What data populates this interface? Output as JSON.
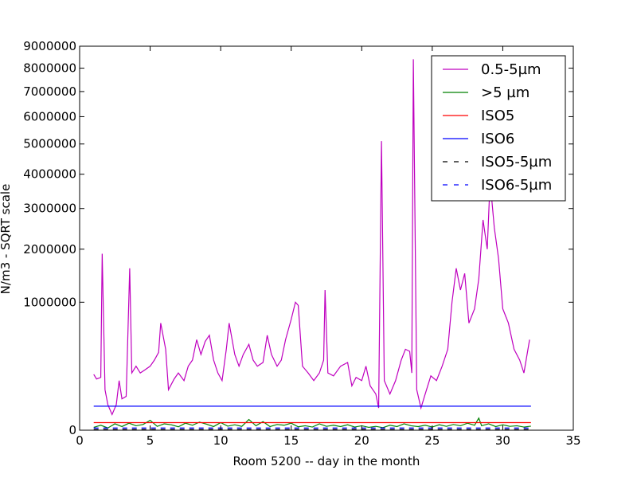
{
  "chart_data": {
    "type": "line",
    "xlabel": "Room 5200 -- day in the month",
    "ylabel": "N/m3 - SQRT scale",
    "xlim": [
      0,
      35
    ],
    "ylim": [
      0,
      9000000
    ],
    "yscale": "sqrt",
    "xticks": [
      0,
      5,
      10,
      15,
      20,
      25,
      30,
      35
    ],
    "yticks": [
      0,
      1000000,
      2000000,
      3000000,
      4000000,
      5000000,
      6000000,
      7000000,
      8000000,
      9000000
    ],
    "legend": "upper right",
    "series": [
      {
        "name": "0.5-5µm",
        "color": "#bf00bf",
        "dash": false,
        "x": [
          1.0,
          1.2,
          1.5,
          1.6,
          1.8,
          2.0,
          2.3,
          2.6,
          2.8,
          3.0,
          3.3,
          3.55,
          3.7,
          4.0,
          4.3,
          4.6,
          5.0,
          5.3,
          5.6,
          5.75,
          6.1,
          6.3,
          6.7,
          7.0,
          7.4,
          7.7,
          8.0,
          8.3,
          8.6,
          8.9,
          9.2,
          9.5,
          9.8,
          10.1,
          10.4,
          10.6,
          11.0,
          11.3,
          11.6,
          12.0,
          12.3,
          12.6,
          13.0,
          13.3,
          13.6,
          14.0,
          14.3,
          14.6,
          15.0,
          15.3,
          15.5,
          15.8,
          16.2,
          16.6,
          17.0,
          17.3,
          17.4,
          17.6,
          18.0,
          18.5,
          19.0,
          19.3,
          19.6,
          20.0,
          20.3,
          20.6,
          21.0,
          21.2,
          21.4,
          21.6,
          22.0,
          22.4,
          22.8,
          23.1,
          23.4,
          23.55,
          23.66,
          23.9,
          24.2,
          24.5,
          24.9,
          25.3,
          25.7,
          26.1,
          26.4,
          26.7,
          27.0,
          27.3,
          27.6,
          28.0,
          28.3,
          28.6,
          28.9,
          29.1,
          29.4,
          29.7,
          30.0,
          30.4,
          30.8,
          31.2,
          31.5,
          31.9
        ],
        "values": [
          190000,
          160000,
          170000,
          1900000,
          100000,
          40000,
          15000,
          40000,
          150000,
          60000,
          70000,
          1600000,
          200000,
          250000,
          200000,
          220000,
          250000,
          300000,
          370000,
          700000,
          400000,
          100000,
          160000,
          200000,
          150000,
          250000,
          300000,
          500000,
          350000,
          480000,
          550000,
          300000,
          200000,
          150000,
          400000,
          700000,
          350000,
          250000,
          350000,
          450000,
          300000,
          250000,
          280000,
          550000,
          350000,
          250000,
          300000,
          500000,
          750000,
          1000000,
          950000,
          250000,
          200000,
          150000,
          200000,
          300000,
          1200000,
          200000,
          180000,
          250000,
          280000,
          120000,
          170000,
          150000,
          250000,
          120000,
          80000,
          30000,
          5100000,
          150000,
          80000,
          150000,
          300000,
          400000,
          380000,
          200000,
          8400000,
          100000,
          30000,
          80000,
          180000,
          150000,
          250000,
          400000,
          1000000,
          1600000,
          1200000,
          1500000,
          700000,
          900000,
          1400000,
          2700000,
          2000000,
          3800000,
          2500000,
          1800000,
          900000,
          700000,
          400000,
          300000,
          200000,
          500000
        ]
      },
      {
        "name": ">5 µm",
        "color": "#008000",
        "dash": false,
        "x": [
          1.0,
          1.5,
          2.0,
          2.5,
          3.0,
          3.5,
          4.0,
          4.5,
          5.0,
          5.5,
          6.0,
          6.5,
          7.0,
          7.5,
          8.0,
          8.5,
          9.0,
          9.5,
          10.0,
          10.5,
          11.0,
          11.5,
          12.0,
          12.5,
          13.0,
          13.5,
          14.0,
          14.5,
          15.0,
          15.5,
          16.0,
          16.5,
          17.0,
          17.5,
          18.0,
          18.5,
          19.0,
          19.5,
          20.0,
          20.5,
          21.0,
          21.5,
          22.0,
          22.5,
          23.0,
          23.5,
          24.0,
          24.5,
          25.0,
          25.5,
          26.0,
          26.5,
          27.0,
          27.5,
          28.0,
          28.3,
          28.5,
          29.0,
          29.5,
          30.0,
          30.5,
          31.0,
          31.5,
          32.0
        ],
        "values": [
          500,
          1500,
          300,
          2500,
          800,
          3000,
          1200,
          2000,
          6000,
          900,
          2500,
          1800,
          700,
          3000,
          1500,
          4000,
          2200,
          800,
          3500,
          1000,
          1800,
          900,
          7000,
          1200,
          4500,
          800,
          2000,
          1500,
          3000,
          700,
          1200,
          600,
          2500,
          900,
          1500,
          800,
          1800,
          600,
          1200,
          500,
          900,
          400,
          1500,
          800,
          2500,
          1200,
          800,
          1500,
          600,
          1800,
          900,
          2000,
          1200,
          3000,
          1500,
          9000,
          1200,
          2500,
          800,
          1800,
          900,
          1200,
          600,
          1000
        ]
      },
      {
        "name": "ISO5",
        "color": "#ff0000",
        "dash": false,
        "x": [
          1,
          32
        ],
        "values": [
          3520,
          3520
        ]
      },
      {
        "name": "ISO6",
        "color": "#0000ff",
        "dash": false,
        "x": [
          1,
          32
        ],
        "values": [
          35200,
          35200
        ]
      },
      {
        "name": "ISO5-5µm",
        "color": "#000000",
        "dash": true,
        "x": [
          1,
          32
        ],
        "values": [
          29,
          29
        ]
      },
      {
        "name": "ISO6-5µm",
        "color": "#0000ff",
        "dash": true,
        "x": [
          1,
          32
        ],
        "values": [
          293,
          293
        ]
      }
    ]
  }
}
